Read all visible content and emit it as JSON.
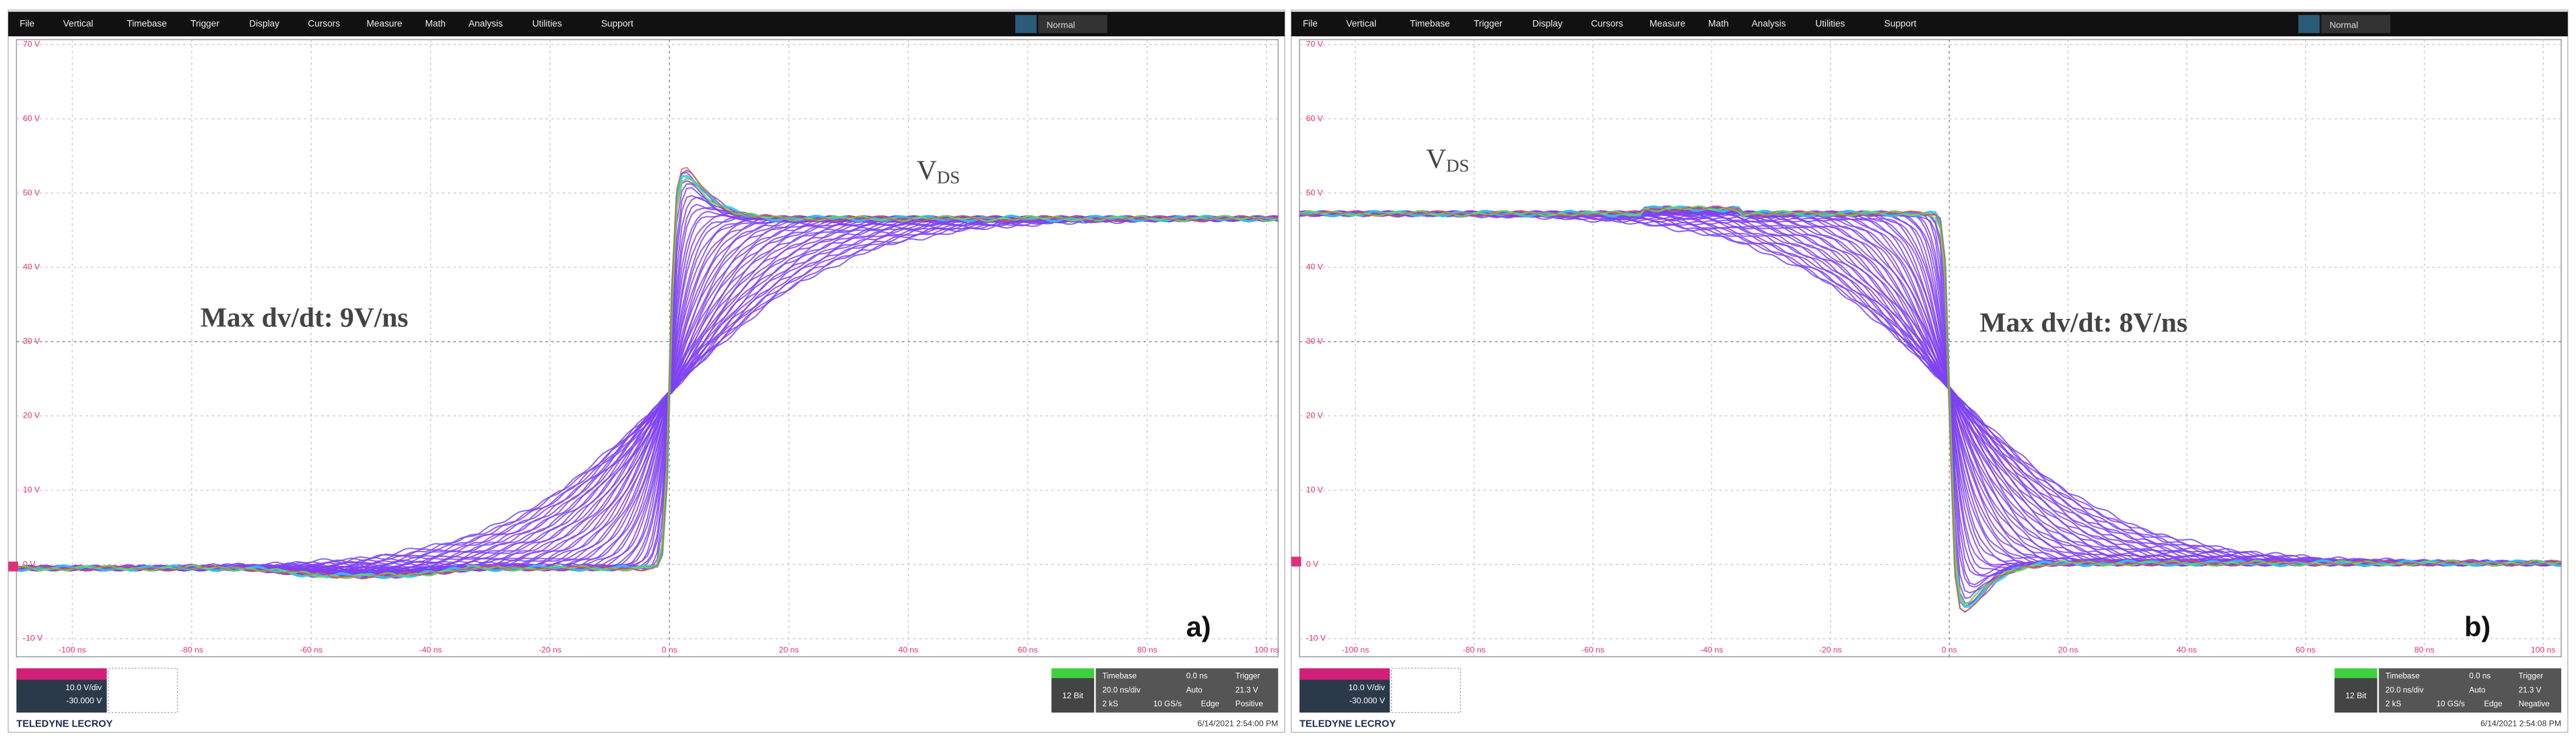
{
  "panels": [
    {
      "menu": [
        "File",
        "Vertical",
        "Timebase",
        "Trigger",
        "Display",
        "Cursors",
        "Measure",
        "Math",
        "Analysis",
        "Utilities",
        "Support"
      ],
      "mode": "Normal",
      "y_labels": [
        "70 V",
        "60 V",
        "50 V",
        "40 V",
        "30 V",
        "20 V",
        "10 V",
        "0 V",
        "-10 V"
      ],
      "x_labels": [
        "-100 ns",
        "-80 ns",
        "-60 ns",
        "-40 ns",
        "-20 ns",
        "0 ns",
        "20 ns",
        "40 ns",
        "60 ns",
        "80 ns",
        "100 ns"
      ],
      "signal_label": {
        "main": "V",
        "sub": "DS"
      },
      "annotation": "Max dv/dt: 9V/ns",
      "panel_label": "a)",
      "channel": {
        "scale": "10.0 V/div",
        "offset": "-30.000 V"
      },
      "status": {
        "bits": "12 Bit",
        "rows": [
          [
            "Timebase",
            "0.0 ns",
            "Trigger"
          ],
          [
            "20.0 ns/div",
            "Auto",
            "21.3 V"
          ],
          [
            "2 kS",
            "10 GS/s",
            "Edge",
            "Positive"
          ]
        ]
      },
      "brand": "TELEDYNE LECROY",
      "timestamp": "6/14/2021 2:54:00 PM"
    },
    {
      "menu": [
        "File",
        "Vertical",
        "Timebase",
        "Trigger",
        "Display",
        "Cursors",
        "Measure",
        "Math",
        "Analysis",
        "Utilities",
        "Support"
      ],
      "mode": "Normal",
      "y_labels": [
        "70 V",
        "60 V",
        "50 V",
        "40 V",
        "30 V",
        "20 V",
        "10 V",
        "0 V",
        "-10 V"
      ],
      "x_labels": [
        "-100 ns",
        "-80 ns",
        "-60 ns",
        "-40 ns",
        "-20 ns",
        "0 ns",
        "20 ns",
        "40 ns",
        "60 ns",
        "80 ns",
        "100 ns"
      ],
      "signal_label": {
        "main": "V",
        "sub": "DS"
      },
      "annotation": "Max dv/dt: 8V/ns",
      "panel_label": "b)",
      "channel": {
        "scale": "10.0 V/div",
        "offset": "-30.000 V"
      },
      "status": {
        "bits": "12 Bit",
        "rows": [
          [
            "Timebase",
            "0.0 ns",
            "Trigger"
          ],
          [
            "20.0 ns/div",
            "Auto",
            "21.3 V"
          ],
          [
            "2 kS",
            "10 GS/s",
            "Edge",
            "Negative"
          ]
        ]
      },
      "brand": "TELEDYNE LECROY",
      "timestamp": "6/14/2021 2:54:08 PM"
    }
  ]
}
